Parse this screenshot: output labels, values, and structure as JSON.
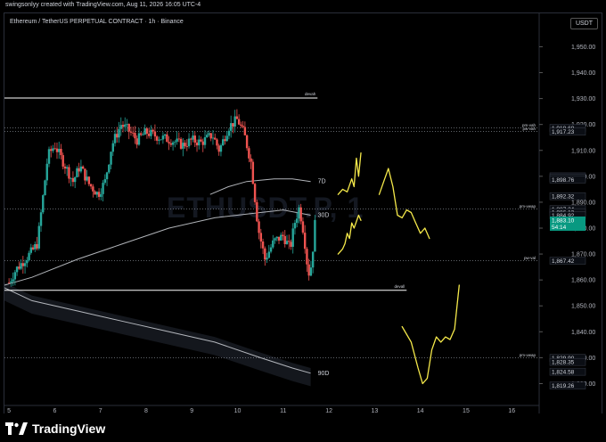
{
  "caption": "swingsonlyy created with TradingView.com, Aug 11, 2026 16:05 UTC-4",
  "symbol_title": "Ethereum / TetherUS PERPETUAL CONTRACT · 1h · Binance",
  "currency_badge": "USDT",
  "watermark": "ETHUSDT.P, 1",
  "brand": "TradingView",
  "colors": {
    "background": "#000000",
    "up_candle": "#26a69a",
    "down_candle": "#ef5350",
    "projection": "#f5e94a",
    "level_line": "#ffffff",
    "badge_blue": "#2962ff",
    "current_price": "#089981"
  },
  "chart_data": {
    "type": "candlestick",
    "title": "Ethereum / TetherUS PERPETUAL CONTRACT · 1h · Binance",
    "timeframe": "1h",
    "exchange": "Binance",
    "x_ticks": [
      "5",
      "6",
      "7",
      "8",
      "9",
      "10",
      "11",
      "12",
      "13",
      "14",
      "15",
      "16"
    ],
    "y_ticks": [
      "1,950.00",
      "1,940.00",
      "1,930.00",
      "1,920.00",
      "1,910.00",
      "1,900.00",
      "1,890.00",
      "1,880.00",
      "1,870.00",
      "1,860.00",
      "1,850.00",
      "1,840.00",
      "1,830.00",
      "1,820.00"
    ],
    "ylim": [
      1815,
      1956
    ],
    "xlim": [
      4.9,
      16.6
    ],
    "price_path": [
      [
        5.0,
        1859
      ],
      [
        5.15,
        1864
      ],
      [
        5.35,
        1868
      ],
      [
        5.5,
        1871
      ],
      [
        5.62,
        1874
      ],
      [
        5.75,
        1893
      ],
      [
        5.85,
        1908
      ],
      [
        6.0,
        1912
      ],
      [
        6.2,
        1905
      ],
      [
        6.4,
        1898
      ],
      [
        6.55,
        1904
      ],
      [
        6.75,
        1897
      ],
      [
        6.95,
        1893
      ],
      [
        7.1,
        1898
      ],
      [
        7.25,
        1912
      ],
      [
        7.45,
        1920
      ],
      [
        7.6,
        1918
      ],
      [
        7.8,
        1914
      ],
      [
        8.0,
        1917
      ],
      [
        8.3,
        1915
      ],
      [
        8.55,
        1914
      ],
      [
        8.8,
        1912
      ],
      [
        9.0,
        1914
      ],
      [
        9.2,
        1913
      ],
      [
        9.45,
        1916
      ],
      [
        9.6,
        1910
      ],
      [
        9.8,
        1919
      ],
      [
        10.0,
        1922
      ],
      [
        10.15,
        1916
      ],
      [
        10.3,
        1905
      ],
      [
        10.45,
        1880
      ],
      [
        10.6,
        1868
      ],
      [
        10.8,
        1875
      ],
      [
        11.0,
        1877
      ],
      [
        11.15,
        1872
      ],
      [
        11.25,
        1882
      ],
      [
        11.35,
        1888
      ],
      [
        11.45,
        1878
      ],
      [
        11.55,
        1862
      ],
      [
        11.62,
        1866
      ],
      [
        11.7,
        1883
      ]
    ],
    "levels": [
      {
        "label": "devah",
        "price": 1930.2,
        "x_start": 4.9,
        "x_end": 11.75
      },
      {
        "label": "devall",
        "price": 1856.0,
        "x_start": 4.9,
        "x_end": 13.7
      }
    ],
    "dotted_levels": [
      {
        "label": "pm-vah",
        "price": 1918.68
      },
      {
        "label": "pw-vah",
        "price": 1917.23
      },
      {
        "label": "pm-vwap",
        "price": 1887.34
      },
      {
        "label": "pw-val",
        "price": 1867.42
      },
      {
        "label": "pm-vwap",
        "price": 1829.9
      }
    ],
    "vwap_bands": [
      {
        "label": "7D",
        "points": [
          [
            9.4,
            1893
          ],
          [
            9.8,
            1896
          ],
          [
            10.2,
            1898
          ],
          [
            10.8,
            1899
          ],
          [
            11.2,
            1899
          ],
          [
            11.6,
            1898
          ]
        ]
      },
      {
        "label": "30D",
        "points": [
          [
            4.9,
            1858
          ],
          [
            5.5,
            1861
          ],
          [
            6.5,
            1868
          ],
          [
            7.5,
            1874
          ],
          [
            8.5,
            1880
          ],
          [
            9.5,
            1884
          ],
          [
            10.5,
            1886
          ],
          [
            11.0,
            1887
          ],
          [
            11.6,
            1885
          ]
        ]
      },
      {
        "label": "90D",
        "points": [
          [
            4.9,
            1857
          ],
          [
            5.5,
            1852
          ],
          [
            6.5,
            1848
          ],
          [
            7.5,
            1844
          ],
          [
            8.5,
            1840
          ],
          [
            9.5,
            1836
          ],
          [
            10.5,
            1830
          ],
          [
            11.2,
            1826
          ],
          [
            11.6,
            1824
          ]
        ]
      }
    ],
    "price_badges": [
      "1,918.68",
      "1,917.23",
      "1,899.97",
      "1,899.36",
      "1,898.76",
      "1,892.32",
      "1,887.34",
      "1,886.13",
      "1,884.92",
      "1,867.42",
      "1,829.90",
      "1,828.35",
      "1,824.58",
      "1,819.26"
    ],
    "current_price": {
      "value": "1,883.10",
      "countdown": "54:14"
    },
    "projections": [
      {
        "points": [
          [
            12.2,
            1893
          ],
          [
            12.3,
            1895
          ],
          [
            12.4,
            1894
          ],
          [
            12.5,
            1899
          ],
          [
            12.55,
            1896
          ],
          [
            12.6,
            1907
          ],
          [
            12.65,
            1900
          ],
          [
            12.7,
            1909
          ]
        ]
      },
      {
        "points": [
          [
            12.2,
            1870
          ],
          [
            12.3,
            1872
          ],
          [
            12.35,
            1874
          ],
          [
            12.4,
            1878
          ],
          [
            12.45,
            1876
          ],
          [
            12.5,
            1882
          ],
          [
            12.55,
            1880
          ],
          [
            12.65,
            1885
          ],
          [
            12.7,
            1883
          ]
        ]
      },
      {
        "points": [
          [
            13.1,
            1893
          ],
          [
            13.2,
            1898
          ],
          [
            13.3,
            1903
          ],
          [
            13.4,
            1896
          ],
          [
            13.5,
            1885
          ],
          [
            13.6,
            1884
          ],
          [
            13.7,
            1887
          ],
          [
            13.8,
            1886
          ],
          [
            13.9,
            1882
          ],
          [
            14.0,
            1878
          ],
          [
            14.1,
            1880
          ],
          [
            14.2,
            1876
          ]
        ]
      },
      {
        "points": [
          [
            13.6,
            1842
          ],
          [
            13.8,
            1836
          ],
          [
            13.95,
            1826
          ],
          [
            14.05,
            1820
          ],
          [
            14.15,
            1822
          ],
          [
            14.25,
            1833
          ],
          [
            14.35,
            1838
          ],
          [
            14.45,
            1836
          ],
          [
            14.55,
            1838
          ],
          [
            14.65,
            1837
          ],
          [
            14.75,
            1841
          ],
          [
            14.85,
            1858
          ]
        ]
      }
    ]
  }
}
